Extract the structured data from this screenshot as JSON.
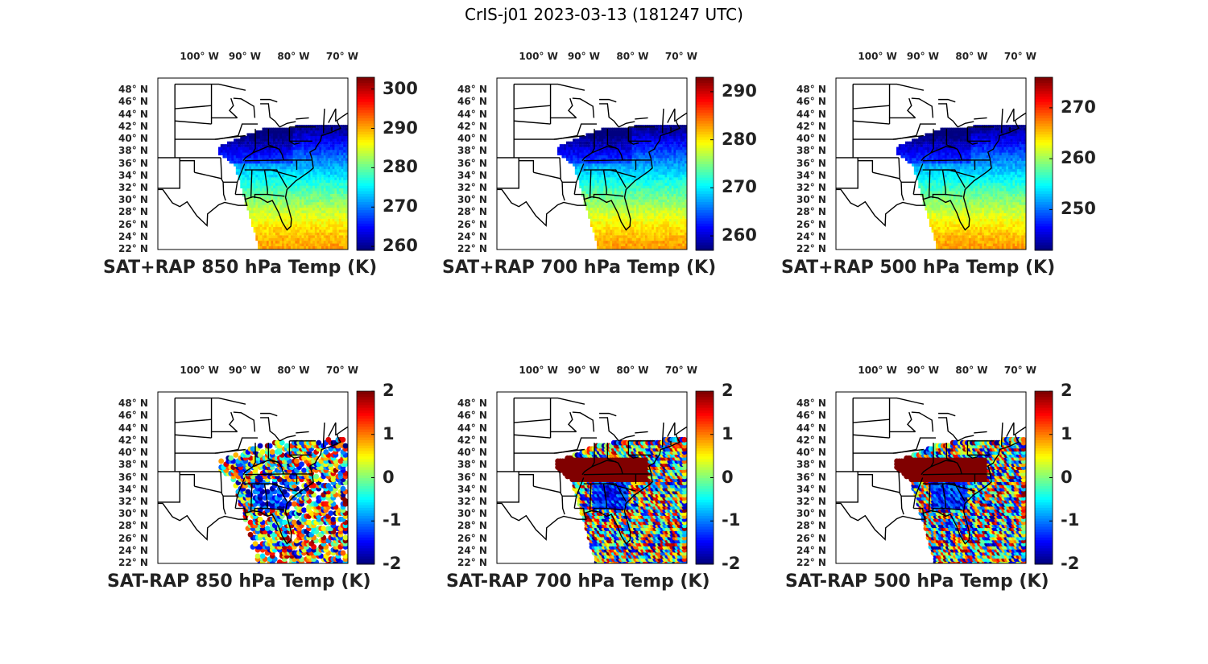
{
  "figure": {
    "title": "CrIS-j01 2023-03-13 (181247 UTC)"
  },
  "map": {
    "lon_labels": [
      "100° W",
      "90° W",
      "80° W",
      "70° W"
    ],
    "lat_labels": [
      "48° N",
      "46° N",
      "44° N",
      "42° N",
      "40° N",
      "38° N",
      "36° N",
      "34° N",
      "32° N",
      "30° N",
      "28° N",
      "26° N",
      "24° N",
      "22° N"
    ],
    "colormap": "jet",
    "land_border_color": "#000000"
  },
  "panels": [
    {
      "title": "SAT+RAP 850 hPa Temp (K)",
      "kind": "total",
      "field_level": 850,
      "clim": [
        259,
        303
      ],
      "ticks": [
        "260",
        "270",
        "280",
        "290",
        "300"
      ],
      "tick_values": [
        260,
        270,
        280,
        290,
        300
      ]
    },
    {
      "title": "SAT+RAP 700 hPa Temp (K)",
      "kind": "total",
      "field_level": 700,
      "clim": [
        257,
        293
      ],
      "ticks": [
        "260",
        "270",
        "280",
        "290"
      ],
      "tick_values": [
        260,
        270,
        280,
        290
      ]
    },
    {
      "title": "SAT+RAP 500 hPa Temp (K)",
      "kind": "total",
      "field_level": 500,
      "clim": [
        242,
        276
      ],
      "ticks": [
        "250",
        "260",
        "270"
      ],
      "tick_values": [
        250,
        260,
        270
      ]
    },
    {
      "title": "SAT-RAP 850 hPa Temp (K)",
      "kind": "diff",
      "field_level": 850,
      "clim": [
        -2,
        2
      ],
      "ticks": [
        "2",
        "1",
        "0",
        "-1",
        "-2"
      ],
      "tick_values": [
        2,
        1,
        0,
        -1,
        -2
      ]
    },
    {
      "title": "SAT-RAP 700 hPa Temp (K)",
      "kind": "diff",
      "field_level": 700,
      "clim": [
        -2,
        2
      ],
      "ticks": [
        "2",
        "1",
        "0",
        "-1",
        "-2"
      ],
      "tick_values": [
        2,
        1,
        0,
        -1,
        -2
      ]
    },
    {
      "title": "SAT-RAP 500 hPa Temp (K)",
      "kind": "diff",
      "field_level": 500,
      "clim": [
        -2,
        2
      ],
      "ticks": [
        "2",
        "1",
        "0",
        "-1",
        "-2"
      ],
      "tick_values": [
        2,
        1,
        0,
        -1,
        -2
      ]
    }
  ]
}
